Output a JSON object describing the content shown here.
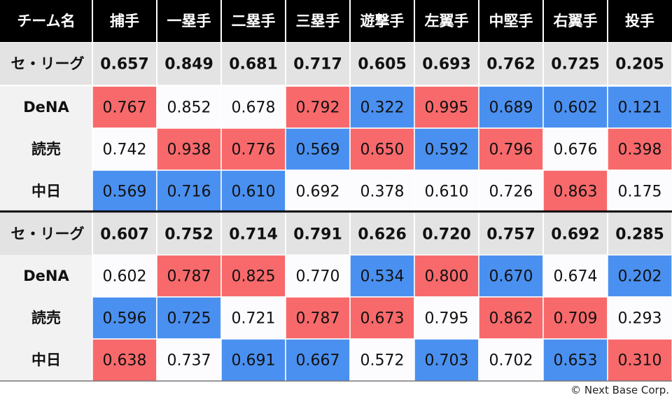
{
  "chart_data": {
    "type": "heatmap",
    "header_label": "チーム名",
    "columns": [
      "捕手",
      "一塁手",
      "二塁手",
      "三塁手",
      "遊撃手",
      "左翼手",
      "中堅手",
      "右翼手",
      "投手"
    ],
    "sections": [
      {
        "summary": {
          "label": "セ・リーグ",
          "values": [
            0.657,
            0.849,
            0.681,
            0.717,
            0.605,
            0.693,
            0.762,
            0.725,
            0.205
          ]
        },
        "rows": [
          {
            "team": "DeNA",
            "values": [
              0.767,
              0.852,
              0.678,
              0.792,
              0.322,
              0.995,
              0.689,
              0.602,
              0.121
            ]
          },
          {
            "team": "読売",
            "values": [
              0.742,
              0.938,
              0.776,
              0.569,
              0.65,
              0.592,
              0.796,
              0.676,
              0.398
            ]
          },
          {
            "team": "中日",
            "values": [
              0.569,
              0.716,
              0.61,
              0.692,
              0.378,
              0.61,
              0.726,
              0.863,
              0.175
            ]
          }
        ]
      },
      {
        "summary": {
          "label": "セ・リーグ",
          "values": [
            0.607,
            0.752,
            0.714,
            0.791,
            0.626,
            0.72,
            0.757,
            0.692,
            0.285
          ]
        },
        "rows": [
          {
            "team": "DeNA",
            "values": [
              0.602,
              0.787,
              0.825,
              0.77,
              0.534,
              0.8,
              0.67,
              0.674,
              0.202
            ]
          },
          {
            "team": "読売",
            "values": [
              0.596,
              0.725,
              0.721,
              0.787,
              0.673,
              0.795,
              0.862,
              0.709,
              0.293
            ]
          },
          {
            "team": "中日",
            "values": [
              0.638,
              0.737,
              0.691,
              0.667,
              0.572,
              0.703,
              0.702,
              0.653,
              0.31
            ]
          }
        ]
      }
    ],
    "colors": {
      "header_bg": "#000000",
      "header_text": "#ffffff",
      "summary_bg": "#e3e3e3",
      "team_bg": "#f2f2f2",
      "high": "#f8696b",
      "mid": "#fcfcff",
      "low": "#4a90f0",
      "grid_line": "#ffffff",
      "section_divider": "#000000"
    }
  },
  "footer": {
    "credit": "© Next Base Corp."
  }
}
